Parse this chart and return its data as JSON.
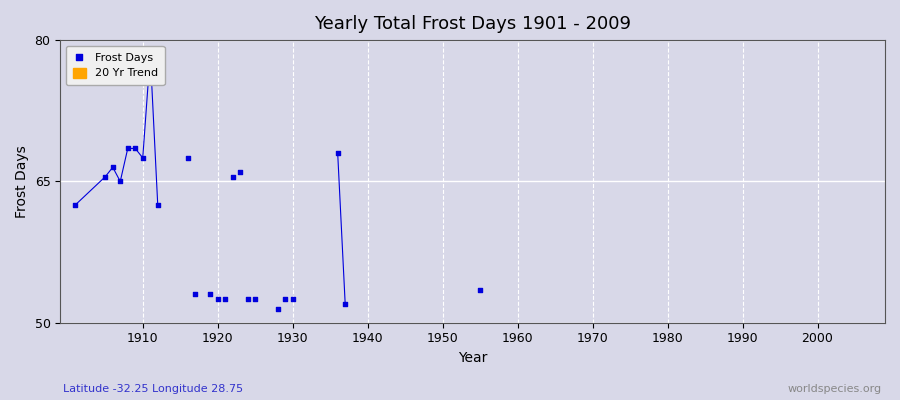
{
  "title": "Yearly Total Frost Days 1901 - 2009",
  "xlabel": "Year",
  "ylabel": "Frost Days",
  "xlim": [
    1899,
    2009
  ],
  "ylim": [
    50,
    80
  ],
  "yticks": [
    50,
    65,
    80
  ],
  "xticks": [
    1910,
    1920,
    1930,
    1940,
    1950,
    1960,
    1970,
    1980,
    1990,
    2000
  ],
  "background_color": "#d8d8e8",
  "plot_bg_color": "#d8d8e8",
  "grid_color": "#ffffff",
  "frost_color": "#0000dd",
  "trend_color": "#ffa500",
  "subtitle": "Latitude -32.25 Longitude 28.75",
  "watermark": "worldspecies.org",
  "all_points": [
    [
      1901,
      62.5
    ],
    [
      1905,
      65.5
    ],
    [
      1906,
      66.5
    ],
    [
      1907,
      65.0
    ],
    [
      1908,
      68.5
    ],
    [
      1909,
      68.5
    ],
    [
      1910,
      67.5
    ],
    [
      1911,
      78.5
    ],
    [
      1912,
      62.5
    ],
    [
      1916,
      67.5
    ],
    [
      1917,
      53.0
    ],
    [
      1919,
      53.0
    ],
    [
      1920,
      52.5
    ],
    [
      1921,
      52.5
    ],
    [
      1922,
      65.5
    ],
    [
      1923,
      66.0
    ],
    [
      1924,
      52.5
    ],
    [
      1925,
      52.5
    ],
    [
      1928,
      51.5
    ],
    [
      1929,
      52.5
    ],
    [
      1930,
      52.5
    ],
    [
      1936,
      68.0
    ],
    [
      1937,
      52.0
    ],
    [
      1955,
      53.5
    ]
  ],
  "connected_segments": [
    [
      [
        1901,
        62.5
      ],
      [
        1905,
        65.5
      ],
      [
        1906,
        66.5
      ],
      [
        1907,
        65.0
      ],
      [
        1908,
        68.5
      ],
      [
        1909,
        68.5
      ],
      [
        1910,
        67.5
      ],
      [
        1911,
        78.5
      ],
      [
        1912,
        62.5
      ]
    ],
    [
      [
        1936,
        68.0
      ],
      [
        1937,
        52.0
      ]
    ]
  ]
}
